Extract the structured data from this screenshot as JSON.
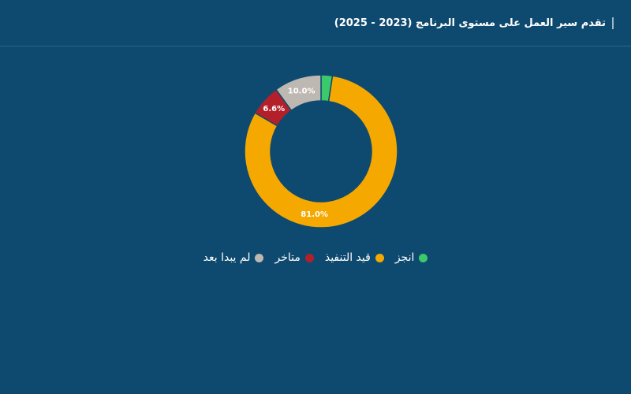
{
  "chart_data": {
    "type": "pie",
    "title": "تقدم سير العمل على مستوى البرنامج (2023 - 2025)",
    "categories": [
      "انجز",
      "قيد التنفيذ",
      "متاخر",
      "لم يبدا بعد"
    ],
    "values": [
      2.4,
      81.0,
      6.6,
      10.0
    ],
    "value_labels": [
      null,
      "81.0%",
      "6.6%",
      "10.0%"
    ],
    "colors": [
      "#3cc96b",
      "#f5a800",
      "#b3202a",
      "#bdb8b2"
    ],
    "donut": true,
    "legend": "bottom"
  }
}
